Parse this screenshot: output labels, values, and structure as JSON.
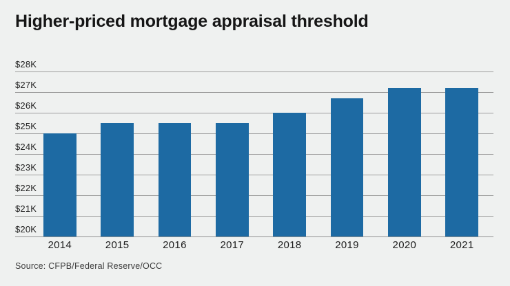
{
  "header": {
    "title": "Higher-priced mortgage appraisal threshold"
  },
  "footer": {
    "source": "Source: CFPB/Federal Reserve/OCC"
  },
  "colors": {
    "background": "#eff1f0",
    "bar": "#1d6aa3",
    "gridline": "#9c9c9c",
    "baseline": "#8f8f8f",
    "title_text": "#161616",
    "axis_text": "#222222",
    "source_text": "#3d3d3d"
  },
  "chart_data": {
    "type": "bar",
    "title": "Higher-priced mortgage appraisal threshold",
    "categories": [
      "2014",
      "2015",
      "2016",
      "2017",
      "2018",
      "2019",
      "2020",
      "2021"
    ],
    "values": [
      25000,
      25500,
      25500,
      25500,
      26000,
      26700,
      27200,
      27200
    ],
    "xlabel": "",
    "ylabel": "",
    "ylim": [
      20000,
      28000
    ],
    "y_tick_step": 1000,
    "y_tick_labels": [
      "$20K",
      "$21K",
      "$22K",
      "$23K",
      "$24K",
      "$25K",
      "$26K",
      "$27K",
      "$28K"
    ],
    "grid": true,
    "legend": false,
    "bar_color": "#1d6aa3",
    "source": "Source: CFPB/Federal Reserve/OCC"
  }
}
